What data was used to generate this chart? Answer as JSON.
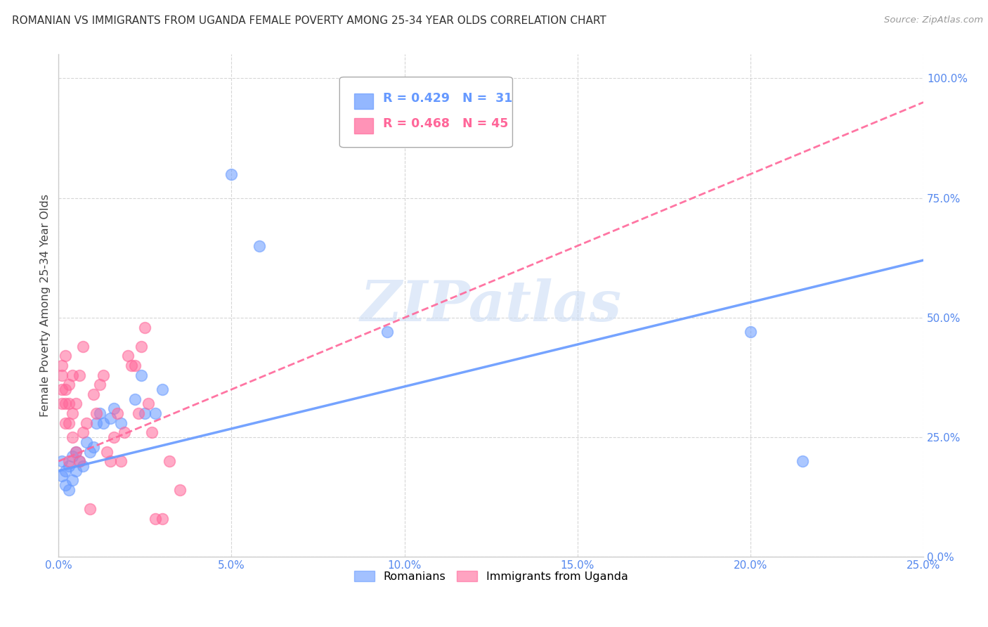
{
  "title": "ROMANIAN VS IMMIGRANTS FROM UGANDA FEMALE POVERTY AMONG 25-34 YEAR OLDS CORRELATION CHART",
  "source": "Source: ZipAtlas.com",
  "ylabel": "Female Poverty Among 25-34 Year Olds",
  "xlim": [
    0.0,
    0.25
  ],
  "ylim": [
    0.0,
    1.05
  ],
  "xtick_labels": [
    "0.0%",
    "5.0%",
    "10.0%",
    "15.0%",
    "20.0%",
    "25.0%"
  ],
  "xtick_values": [
    0.0,
    0.05,
    0.1,
    0.15,
    0.2,
    0.25
  ],
  "ytick_labels": [
    "100.0%",
    "75.0%",
    "50.0%",
    "25.0%",
    "0.0%"
  ],
  "ytick_values": [
    1.0,
    0.75,
    0.5,
    0.25,
    0.0
  ],
  "romanian_color": "#6699ff",
  "uganda_color": "#ff6699",
  "legend_R_romanian": "R = 0.429",
  "legend_N_romanian": "N =  31",
  "legend_R_uganda": "R = 0.468",
  "legend_N_uganda": "N = 45",
  "watermark": "ZIPatlas",
  "ro_line_x": [
    0.0,
    0.25
  ],
  "ro_line_y": [
    0.18,
    0.62
  ],
  "ug_line_x": [
    0.0,
    0.25
  ],
  "ug_line_y": [
    0.2,
    0.95
  ],
  "romanians_x": [
    0.001,
    0.001,
    0.002,
    0.002,
    0.003,
    0.003,
    0.004,
    0.004,
    0.005,
    0.005,
    0.006,
    0.007,
    0.008,
    0.009,
    0.01,
    0.011,
    0.012,
    0.013,
    0.015,
    0.016,
    0.018,
    0.022,
    0.024,
    0.025,
    0.028,
    0.03,
    0.05,
    0.058,
    0.095,
    0.2,
    0.215
  ],
  "romanians_y": [
    0.17,
    0.2,
    0.15,
    0.18,
    0.14,
    0.19,
    0.16,
    0.21,
    0.18,
    0.22,
    0.2,
    0.19,
    0.24,
    0.22,
    0.23,
    0.28,
    0.3,
    0.28,
    0.29,
    0.31,
    0.28,
    0.33,
    0.38,
    0.3,
    0.3,
    0.35,
    0.8,
    0.65,
    0.47,
    0.47,
    0.2
  ],
  "uganda_x": [
    0.001,
    0.001,
    0.001,
    0.001,
    0.002,
    0.002,
    0.002,
    0.002,
    0.003,
    0.003,
    0.003,
    0.003,
    0.004,
    0.004,
    0.004,
    0.005,
    0.005,
    0.006,
    0.006,
    0.007,
    0.007,
    0.008,
    0.009,
    0.01,
    0.011,
    0.012,
    0.013,
    0.014,
    0.015,
    0.016,
    0.017,
    0.018,
    0.019,
    0.02,
    0.021,
    0.022,
    0.023,
    0.024,
    0.025,
    0.026,
    0.027,
    0.028,
    0.03,
    0.032,
    0.035
  ],
  "uganda_y": [
    0.32,
    0.35,
    0.38,
    0.4,
    0.28,
    0.32,
    0.35,
    0.42,
    0.2,
    0.28,
    0.32,
    0.36,
    0.25,
    0.3,
    0.38,
    0.22,
    0.32,
    0.2,
    0.38,
    0.26,
    0.44,
    0.28,
    0.1,
    0.34,
    0.3,
    0.36,
    0.38,
    0.22,
    0.2,
    0.25,
    0.3,
    0.2,
    0.26,
    0.42,
    0.4,
    0.4,
    0.3,
    0.44,
    0.48,
    0.32,
    0.26,
    0.08,
    0.08,
    0.2,
    0.14
  ]
}
